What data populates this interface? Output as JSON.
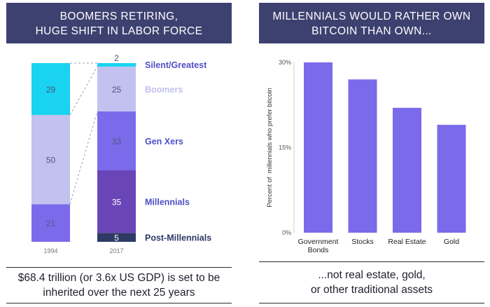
{
  "left_panel": {
    "header_line1": "BOOMERS RETIRING,",
    "header_line2": "HUGE SHIFT IN LABOR FORCE",
    "caption_line1": "$68.4 trillion (or 3.6x US GDP) is set to be",
    "caption_line2": "inherited over the next 25 years"
  },
  "right_panel": {
    "header_line1": "MILLENNIALS WOULD RATHER OWN",
    "header_line2": "BITCOIN THAN OWN...",
    "caption_line1": "...not real estate, gold,",
    "caption_line2": "or other traditional assets"
  },
  "chart_data": [
    {
      "type": "bar",
      "stacked": true,
      "title": "",
      "categories": [
        "1994",
        "2017"
      ],
      "series": [
        {
          "name": "Post-Millennials",
          "values": [
            0,
            5
          ],
          "color": "#2e3a66"
        },
        {
          "name": "Millennials",
          "values": [
            0,
            35
          ],
          "color": "#6a45b8"
        },
        {
          "name": "Gen Xers",
          "values": [
            21,
            33
          ],
          "color": "#7b6bea"
        },
        {
          "name": "Boomers",
          "values": [
            50,
            25
          ],
          "color": "#c3c1ef"
        },
        {
          "name": "Silent/Greatest",
          "values": [
            29,
            2
          ],
          "color": "#1ad3f0"
        }
      ],
      "legend_placement": "right",
      "legend_color": "#4f4fc8",
      "connector_lines": "dashed",
      "label_color": "#4d5680"
    },
    {
      "type": "bar",
      "title": "",
      "categories": [
        "Government Bonds",
        "Stocks",
        "Real Estate",
        "Gold"
      ],
      "values": [
        30,
        27,
        22,
        19
      ],
      "ylabel": "Percent of  millennials who prefer bitcoin",
      "ylim": [
        0,
        30
      ],
      "yticks": [
        "0%",
        "15%",
        "30%"
      ],
      "ytick_values": [
        0,
        15,
        30
      ],
      "bar_color": "#7b6bea",
      "grid": false
    }
  ]
}
